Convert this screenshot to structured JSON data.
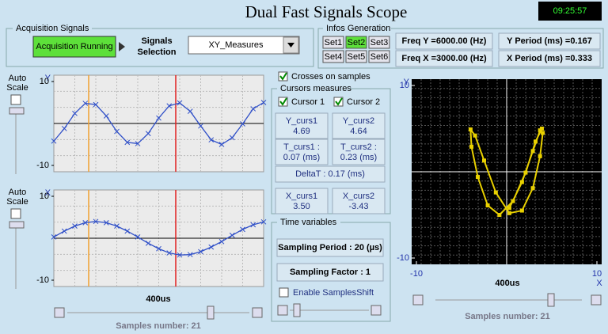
{
  "title": "Dual Fast Signals Scope",
  "clock": "09:25:57",
  "acquisition": {
    "group": "Acquisition Signals",
    "button": "Acquisition Running",
    "selection_label": [
      "Signals",
      "Selection"
    ],
    "selection": "XY_Measures"
  },
  "infos": {
    "group": "Infos Generation",
    "sets": [
      "Set1",
      "Set2",
      "Set3",
      "Set4",
      "Set5",
      "Set6"
    ],
    "fields": [
      "Freq Y =6000.00 (Hz)",
      "Freq X =3000.00 (Hz)",
      "Y Period (ms) =0.167",
      "X Period  (ms) =0.333"
    ]
  },
  "left_plots": {
    "auto_scale": [
      "Auto",
      "Scale"
    ],
    "y_plot": {
      "axis_label": "Y",
      "ylim": [
        -10,
        10
      ],
      "yticks": [
        10,
        -10
      ],
      "values": [
        -4.2,
        -1.2,
        2.4,
        4.8,
        4.5,
        1.8,
        -1.9,
        -4.5,
        -4.8,
        -2.4,
        1.3,
        4.2,
        4.9,
        2.9,
        -0.6,
        -3.9,
        -5.0,
        -3.4,
        -0.1,
        3.5,
        5.0
      ]
    },
    "x_plot": {
      "axis_label": "X",
      "ylim": [
        -10,
        10
      ],
      "yticks": [
        10,
        -10
      ],
      "values": [
        0.3,
        1.7,
        2.9,
        3.7,
        4.0,
        3.7,
        2.9,
        1.7,
        0.3,
        -1.2,
        -2.5,
        -3.5,
        -4.0,
        -3.9,
        -3.2,
        -2.1,
        -0.8,
        0.7,
        2.1,
        3.2,
        3.9
      ]
    },
    "time_label": "400us",
    "samples": "Samples number: 21"
  },
  "cursors": {
    "crosses": "Crosses on samples",
    "group": "Cursors measures",
    "cursor1": "Cursor 1",
    "cursor2": "Cursor 2",
    "y_curs1": {
      "label": "Y_curs1",
      "value": "4.69"
    },
    "y_curs2": {
      "label": "Y_curs2",
      "value": "4.64"
    },
    "t_curs1": {
      "label": "T_curs1 :",
      "value": "0.07 (ms)"
    },
    "t_curs2": {
      "label": "T_curs2 :",
      "value": "0.23 (ms)"
    },
    "delta_t": "DeltaT : 0.17 (ms)",
    "x_curs1": {
      "label": "X_curs1",
      "value": "3.50"
    },
    "x_curs2": {
      "label": "X_curs2",
      "value": "-3.43"
    }
  },
  "time_variables": {
    "group": "Time variables",
    "sampling_period": "Sampling Period : 20 (µs)",
    "sampling_factor": "Sampling Factor : 1",
    "enable_shift": "Enable SamplesShift"
  },
  "xy_plot": {
    "y_label": "Y",
    "x_label": "X",
    "xlim": [
      -10,
      10
    ],
    "ylim": [
      -10,
      10
    ],
    "xticks": [
      -10,
      10
    ],
    "yticks": [
      10,
      -10
    ],
    "time_label": "400us",
    "samples": "Samples number: 21"
  }
}
